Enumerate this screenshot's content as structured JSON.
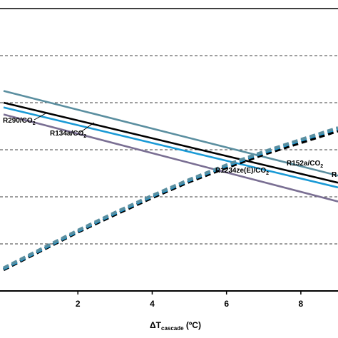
{
  "chart_data": {
    "type": "line",
    "xlabel": {
      "main": "ΔT",
      "sub": "cascade",
      "unit": " (ºC)"
    },
    "xlim": [
      0,
      9
    ],
    "x_ticks": [
      "2",
      "4",
      "6",
      "8"
    ],
    "x_tick_values": [
      2,
      4,
      6,
      8
    ],
    "grid": {
      "horizontal": "dashed",
      "vertical": "none"
    },
    "ylim": [
      0,
      6
    ],
    "y_gridlines": [
      1,
      2,
      3,
      4,
      5
    ],
    "series": [
      {
        "name": "R290/CO2",
        "label_main": "R290/CO",
        "label_sub": "2",
        "label_tail": "",
        "style": "solid",
        "color": "#7a6f93",
        "x": [
          0,
          9
        ],
        "y": [
          3.75,
          1.9
        ]
      },
      {
        "name": "R134a/CO2",
        "label_main": "R134a/CO",
        "label_sub": "2",
        "label_tail": "",
        "style": "solid",
        "color": "#1a9ad6",
        "x": [
          0,
          9
        ],
        "y": [
          3.9,
          2.2
        ]
      },
      {
        "name": "R152a/CO2",
        "label_main": "R152a/CO",
        "label_sub": "2",
        "label_tail": "",
        "style": "solid",
        "color": "#000000",
        "x": [
          0,
          9
        ],
        "y": [
          4.0,
          2.3
        ]
      },
      {
        "name": "R1234ze(E)/CO2",
        "label_main": "R1234ze(E)/CO",
        "label_sub": "2",
        "label_tail": "",
        "style": "solid",
        "color": "#5b8fa0",
        "x": [
          0,
          9
        ],
        "y": [
          4.25,
          2.45
        ]
      },
      {
        "name": "R",
        "label_main": "R",
        "label_sub": "",
        "label_tail": "",
        "style": "solid",
        "color": "#000000",
        "x": [],
        "y": []
      },
      {
        "name": "dashed-black",
        "style": "dashed",
        "color": "#000000",
        "x": [
          0,
          1,
          2,
          3,
          4,
          5,
          6,
          7,
          8,
          9
        ],
        "y": [
          0.45,
          0.85,
          1.25,
          1.62,
          1.98,
          2.32,
          2.62,
          2.9,
          3.15,
          3.4
        ]
      },
      {
        "name": "dashed-blue",
        "style": "dashed",
        "color": "#1a9ad6",
        "x": [
          0,
          1,
          2,
          3,
          4,
          5,
          6,
          7,
          8,
          9
        ],
        "y": [
          0.47,
          0.87,
          1.27,
          1.65,
          2.01,
          2.35,
          2.66,
          2.94,
          3.2,
          3.45
        ]
      },
      {
        "name": "dashed-grey",
        "style": "dashed",
        "color": "#5b8fa0",
        "x": [
          0,
          1,
          2,
          3,
          4,
          5,
          6,
          7,
          8,
          9
        ],
        "y": [
          0.49,
          0.89,
          1.29,
          1.67,
          2.03,
          2.37,
          2.68,
          2.96,
          3.22,
          3.47
        ]
      }
    ]
  }
}
